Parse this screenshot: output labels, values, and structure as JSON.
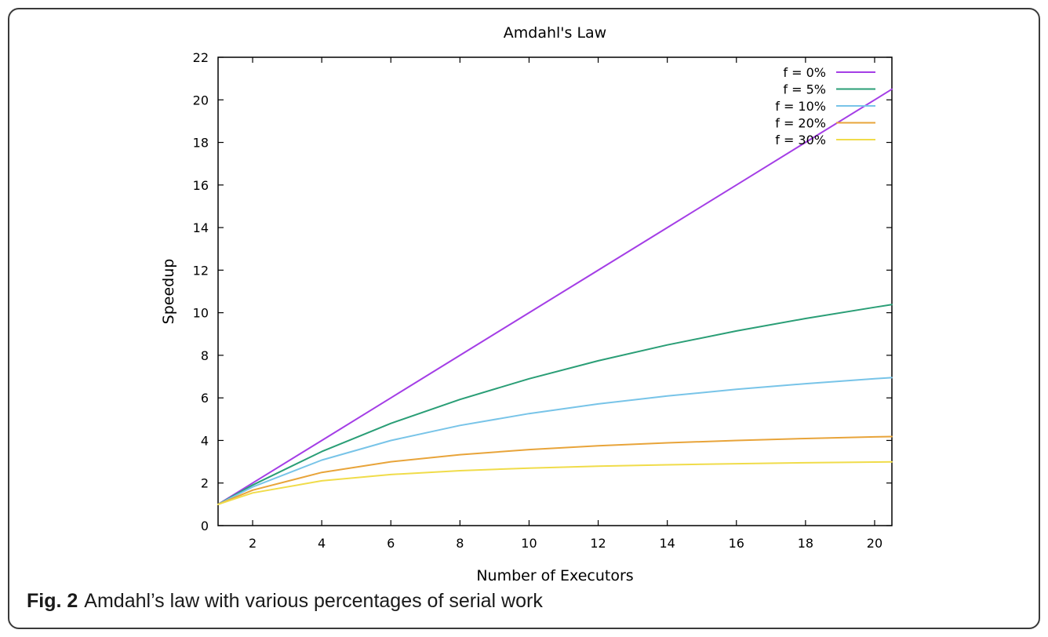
{
  "caption": {
    "fig_label": "Fig. 2",
    "text": "Amdahl’s law with various percentages of serial work"
  },
  "chart_data": {
    "type": "line",
    "title": "Amdahl's Law",
    "xlabel": "Number of Executors",
    "ylabel": "Speedup",
    "xlim": [
      1,
      20.5
    ],
    "ylim": [
      0,
      22
    ],
    "xticks": [
      2,
      4,
      6,
      8,
      10,
      12,
      14,
      16,
      18,
      20
    ],
    "yticks": [
      0,
      2,
      4,
      6,
      8,
      10,
      12,
      14,
      16,
      18,
      20,
      22
    ],
    "legend_position": "top-right",
    "grid": false,
    "x": [
      1,
      2,
      4,
      6,
      8,
      10,
      12,
      14,
      16,
      18,
      20,
      20.5
    ],
    "series": [
      {
        "name": "f = 0%",
        "color": "#a43ee6",
        "values": [
          1.0,
          2.0,
          4.0,
          6.0,
          8.0,
          10.0,
          12.0,
          14.0,
          16.0,
          18.0,
          20.0,
          20.5
        ]
      },
      {
        "name": "f = 5%",
        "color": "#2a9e76",
        "values": [
          1.0,
          1.905,
          3.478,
          4.8,
          5.926,
          6.897,
          7.742,
          8.485,
          9.143,
          9.73,
          10.256,
          10.38
        ]
      },
      {
        "name": "f = 10%",
        "color": "#78c4e8",
        "values": [
          1.0,
          1.818,
          3.077,
          4.0,
          4.706,
          5.263,
          5.714,
          6.087,
          6.4,
          6.667,
          6.897,
          6.949
        ]
      },
      {
        "name": "f = 20%",
        "color": "#e8a43a",
        "values": [
          1.0,
          1.667,
          2.5,
          3.0,
          3.333,
          3.571,
          3.75,
          3.889,
          4.0,
          4.091,
          4.167,
          4.184
        ]
      },
      {
        "name": "f = 30%",
        "color": "#f0dc4a",
        "values": [
          1.0,
          1.538,
          2.105,
          2.4,
          2.581,
          2.703,
          2.791,
          2.857,
          2.909,
          2.951,
          2.985,
          2.993
        ]
      }
    ]
  }
}
